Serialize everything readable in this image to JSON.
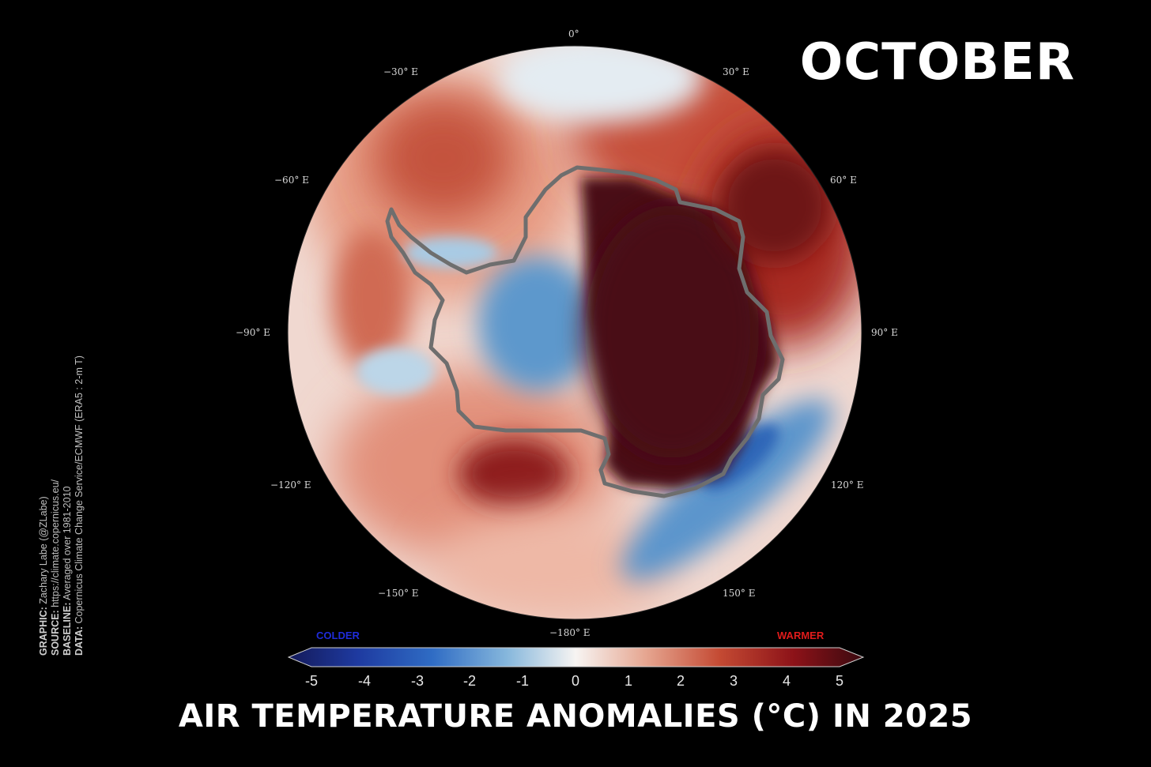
{
  "header": {
    "month": "OCTOBER"
  },
  "title": "AIR TEMPERATURE ANOMALIES (°C) IN 2025",
  "map": {
    "projection": "south-polar-stereographic",
    "longitude_labels": [
      "0°",
      "30° E",
      "60° E",
      "90° E",
      "120° E",
      "150° E",
      "−180° E",
      "−150° E",
      "−120° E",
      "−90° E",
      "−60° E",
      "−30° E"
    ]
  },
  "colorbar": {
    "cold_label": "COLDER",
    "warm_label": "WARMER",
    "ticks": [
      "-5",
      "-4",
      "-3",
      "-2",
      "-1",
      "0",
      "1",
      "2",
      "3",
      "4",
      "5"
    ],
    "colors": [
      "#1a1f6e",
      "#2b55b8",
      "#4b8fd0",
      "#a9cde6",
      "#f4f4f4",
      "#e8b09a",
      "#c84f36",
      "#8f1419",
      "#3d0a10"
    ]
  },
  "credits": [
    {
      "key": "GRAPHIC:",
      "value": " Zachary Labe (@ZLabe)"
    },
    {
      "key": "SOURCE:",
      "value": " https://climate.copernicus.eu/"
    },
    {
      "key": "BASELINE:",
      "value": " Averaged over 1981-2010"
    },
    {
      "key": "DATA:",
      "value": " Copernicus Climate Change Service/ECMWF (ERA5 : 2-m T)"
    }
  ]
}
